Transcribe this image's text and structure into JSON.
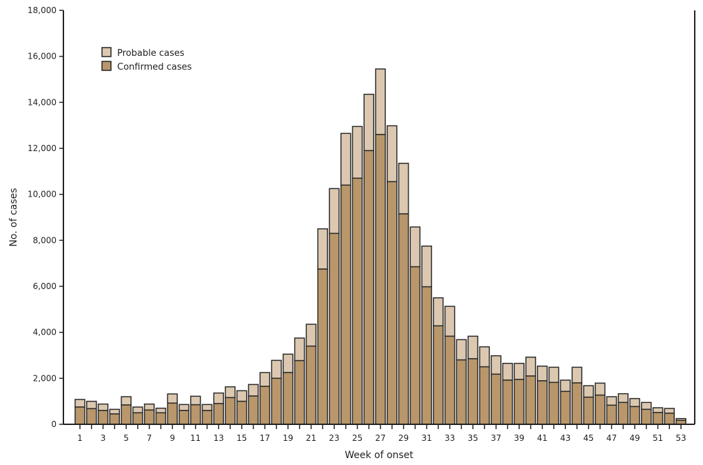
{
  "chart_data": {
    "type": "bar",
    "stacked": true,
    "xlabel": "Week of onset",
    "ylabel": "No. of cases",
    "ylim": [
      0,
      18000
    ],
    "yticks": [
      0,
      2000,
      4000,
      6000,
      8000,
      10000,
      12000,
      14000,
      16000,
      18000
    ],
    "ytick_labels": [
      "0",
      "2,000",
      "4,000",
      "6,000",
      "8,000",
      "10,000",
      "12,000",
      "14,000",
      "16,000",
      "18,000"
    ],
    "xtick_labels": [
      "1",
      "3",
      "5",
      "7",
      "9",
      "11",
      "13",
      "15",
      "17",
      "19",
      "21",
      "23",
      "25",
      "27",
      "29",
      "31",
      "33",
      "35",
      "37",
      "39",
      "41",
      "43",
      "45",
      "47",
      "49",
      "51",
      "53"
    ],
    "categories": [
      1,
      2,
      3,
      4,
      5,
      6,
      7,
      8,
      9,
      10,
      11,
      12,
      13,
      14,
      15,
      16,
      17,
      18,
      19,
      20,
      21,
      22,
      23,
      24,
      25,
      26,
      27,
      28,
      29,
      30,
      31,
      32,
      33,
      34,
      35,
      36,
      37,
      38,
      39,
      40,
      41,
      42,
      43,
      44,
      45,
      46,
      47,
      48,
      49,
      50,
      51,
      52,
      53
    ],
    "legend_position": "top-left",
    "grid": false,
    "series": [
      {
        "name": "Confirmed cases",
        "color": "#b9976b",
        "values": [
          750,
          680,
          600,
          450,
          840,
          500,
          620,
          500,
          920,
          600,
          850,
          600,
          900,
          1160,
          1000,
          1230,
          1650,
          2000,
          2250,
          2770,
          3400,
          6750,
          8300,
          10400,
          10700,
          11900,
          12600,
          10550,
          9150,
          6850,
          5980,
          4280,
          3830,
          2800,
          2850,
          2500,
          2180,
          1920,
          1950,
          2100,
          1890,
          1820,
          1430,
          1800,
          1180,
          1270,
          830,
          950,
          770,
          650,
          510,
          480,
          170
        ]
      },
      {
        "name": "Probable cases",
        "color": "#dcc8b0",
        "values": [
          330,
          320,
          280,
          200,
          360,
          250,
          260,
          200,
          400,
          260,
          370,
          260,
          460,
          470,
          460,
          500,
          600,
          780,
          800,
          980,
          950,
          1750,
          1950,
          2250,
          2250,
          2450,
          2850,
          2430,
          2200,
          1730,
          1770,
          1220,
          1300,
          880,
          980,
          870,
          800,
          730,
          700,
          820,
          640,
          660,
          490,
          680,
          500,
          520,
          370,
          380,
          350,
          300,
          210,
          210,
          80
        ]
      }
    ]
  }
}
